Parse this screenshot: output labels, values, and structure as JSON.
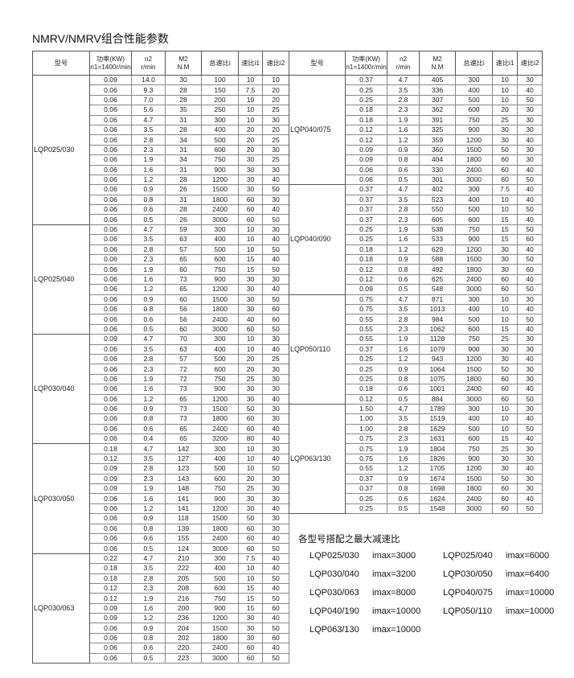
{
  "title": "NMRV/NMRV组合性能参数",
  "headers": [
    {
      "l1": "型号",
      "l2": ""
    },
    {
      "l1": "功率(KW)",
      "l2": "n1=1400r/min"
    },
    {
      "l1": "n2",
      "l2": "r/min"
    },
    {
      "l1": "M2",
      "l2": "N.M"
    },
    {
      "l1": "总速比i",
      "l2": ""
    },
    {
      "l1": "速比i1",
      "l2": ""
    },
    {
      "l1": "速比i2",
      "l2": ""
    }
  ],
  "left_table": [
    {
      "model": "LQP025/030",
      "rows": [
        [
          "0.09",
          "14.0",
          "30",
          "100",
          "10",
          "10"
        ],
        [
          "0.06",
          "9.3",
          "28",
          "150",
          "7.5",
          "20"
        ],
        [
          "0.06",
          "7.0",
          "28",
          "200",
          "10",
          "20"
        ],
        [
          "0.06",
          "5.6",
          "35",
          "250",
          "10",
          "25"
        ],
        [
          "0.06",
          "4.7",
          "31",
          "300",
          "10",
          "30"
        ],
        [
          "0.06",
          "3.5",
          "28",
          "400",
          "20",
          "20"
        ],
        [
          "0.06",
          "2.8",
          "34",
          "500",
          "20",
          "25"
        ],
        [
          "0.06",
          "2.3",
          "31",
          "600",
          "20",
          "30"
        ],
        [
          "0.06",
          "1.9",
          "34",
          "750",
          "30",
          "25"
        ],
        [
          "0.06",
          "1.6",
          "31",
          "900",
          "30",
          "30"
        ],
        [
          "0.06",
          "1.2",
          "28",
          "1200",
          "30",
          "40"
        ],
        [
          "0.06",
          "0.9",
          "26",
          "1500",
          "30",
          "50"
        ],
        [
          "0.06",
          "0.8",
          "31",
          "1800",
          "60",
          "30"
        ],
        [
          "0.06",
          "0.6",
          "28",
          "2400",
          "60",
          "40"
        ],
        [
          "0.06",
          "0.5",
          "26",
          "3000",
          "60",
          "50"
        ]
      ]
    },
    {
      "model": "LQP025/040",
      "rows": [
        [
          "0.06",
          "4.7",
          "59",
          "300",
          "10",
          "30"
        ],
        [
          "0.06",
          "3.5",
          "63",
          "400",
          "10",
          "40"
        ],
        [
          "0.06",
          "2.8",
          "57",
          "500",
          "10",
          "50"
        ],
        [
          "0.06",
          "2.3",
          "65",
          "600",
          "15",
          "40"
        ],
        [
          "0.06",
          "1.9",
          "60",
          "750",
          "15",
          "50"
        ],
        [
          "0.06",
          "1.6",
          "73",
          "900",
          "30",
          "30"
        ],
        [
          "0.06",
          "1.2",
          "65",
          "1200",
          "30",
          "40"
        ],
        [
          "0.06",
          "0.9",
          "60",
          "1500",
          "30",
          "50"
        ],
        [
          "0.06",
          "0.8",
          "56",
          "1800",
          "30",
          "60"
        ],
        [
          "0.06",
          "0.6",
          "56",
          "2400",
          "40",
          "60"
        ],
        [
          "0.06",
          "0.5",
          "60",
          "3000",
          "60",
          "50"
        ]
      ]
    },
    {
      "model": "LQP030/040",
      "rows": [
        [
          "0.09",
          "4.7",
          "70",
          "300",
          "10",
          "30"
        ],
        [
          "0.06",
          "3.5",
          "63",
          "400",
          "10",
          "40"
        ],
        [
          "0.06",
          "2.8",
          "57",
          "500",
          "20",
          "25"
        ],
        [
          "0.06",
          "2.3",
          "72",
          "600",
          "20",
          "30"
        ],
        [
          "0.06",
          "1.9",
          "72",
          "750",
          "25",
          "30"
        ],
        [
          "0.06",
          "1.6",
          "73",
          "900",
          "30",
          "30"
        ],
        [
          "0.06",
          "1.2",
          "65",
          "1200",
          "30",
          "40"
        ],
        [
          "0.06",
          "0.9",
          "73",
          "1500",
          "50",
          "30"
        ],
        [
          "0.06",
          "0.8",
          "73",
          "1800",
          "60",
          "30"
        ],
        [
          "0.06",
          "0.6",
          "65",
          "2400",
          "60",
          "40"
        ],
        [
          "0.06",
          "0.4",
          "65",
          "3200",
          "80",
          "40"
        ]
      ]
    },
    {
      "model": "LQP030/050",
      "rows": [
        [
          "0.18",
          "4.7",
          "142",
          "300",
          "10",
          "30"
        ],
        [
          "0.12",
          "3.5",
          "127",
          "400",
          "10",
          "40"
        ],
        [
          "0.09",
          "2.8",
          "123",
          "500",
          "10",
          "50"
        ],
        [
          "0.09",
          "2.3",
          "143",
          "600",
          "20",
          "30"
        ],
        [
          "0.09",
          "1.9",
          "148",
          "750",
          "25",
          "30"
        ],
        [
          "0.06",
          "1.6",
          "141",
          "900",
          "30",
          "30"
        ],
        [
          "0.06",
          "1.2",
          "141",
          "1200",
          "30",
          "40"
        ],
        [
          "0.06",
          "0.9",
          "118",
          "1500",
          "50",
          "30"
        ],
        [
          "0.06",
          "0.8",
          "139",
          "1800",
          "60",
          "30"
        ],
        [
          "0.06",
          "0.6",
          "155",
          "2400",
          "60",
          "40"
        ],
        [
          "0.06",
          "0.5",
          "124",
          "3000",
          "60",
          "50"
        ]
      ]
    },
    {
      "model": "LQP030/063",
      "rows": [
        [
          "0.22",
          "4.7",
          "210",
          "300",
          "7.5",
          "40"
        ],
        [
          "0.18",
          "3.5",
          "222",
          "400",
          "10",
          "40"
        ],
        [
          "0.18",
          "2.8",
          "205",
          "500",
          "10",
          "50"
        ],
        [
          "0.12",
          "2.3",
          "208",
          "600",
          "15",
          "40"
        ],
        [
          "0.12",
          "1.9",
          "216",
          "750",
          "15",
          "50"
        ],
        [
          "0.09",
          "1.6",
          "200",
          "900",
          "15",
          "60"
        ],
        [
          "0.09",
          "1.2",
          "236",
          "1200",
          "30",
          "40"
        ],
        [
          "0.06",
          "0.9",
          "204",
          "1500",
          "30",
          "50"
        ],
        [
          "0.06",
          "0.8",
          "202",
          "1800",
          "30",
          "60"
        ],
        [
          "0.06",
          "0.6",
          "220",
          "2400",
          "60",
          "40"
        ],
        [
          "0.06",
          "0.5",
          "223",
          "3000",
          "60",
          "50"
        ]
      ]
    }
  ],
  "right_table": [
    {
      "model": "LQP040/075",
      "rows": [
        [
          "0.37",
          "4.7",
          "405",
          "300",
          "10",
          "30"
        ],
        [
          "0.25",
          "3.5",
          "336",
          "400",
          "10",
          "40"
        ],
        [
          "0.25",
          "2.8",
          "307",
          "500",
          "10",
          "50"
        ],
        [
          "0.18",
          "2.3",
          "362",
          "600",
          "20",
          "30"
        ],
        [
          "0.18",
          "1.9",
          "391",
          "750",
          "25",
          "30"
        ],
        [
          "0.12",
          "1.6",
          "325",
          "900",
          "30",
          "30"
        ],
        [
          "0.12",
          "1.2",
          "359",
          "1200",
          "30",
          "40"
        ],
        [
          "0.09",
          "0.9",
          "360",
          "1500",
          "50",
          "30"
        ],
        [
          "0.09",
          "0.8",
          "404",
          "1800",
          "60",
          "30"
        ],
        [
          "0.06",
          "0.6",
          "330",
          "2400",
          "60",
          "40"
        ],
        [
          "0.06",
          "0.5",
          "301",
          "3000",
          "60",
          "50"
        ]
      ]
    },
    {
      "model": "LQP040/090",
      "rows": [
        [
          "0.37",
          "4.7",
          "402",
          "300",
          "7.5",
          "40"
        ],
        [
          "0.37",
          "3.5",
          "523",
          "400",
          "10",
          "40"
        ],
        [
          "0.37",
          "2.8",
          "550",
          "500",
          "10",
          "50"
        ],
        [
          "0.37",
          "2.3",
          "605",
          "600",
          "15",
          "40"
        ],
        [
          "0.25",
          "1.9",
          "538",
          "750",
          "15",
          "50"
        ],
        [
          "0.25",
          "1.6",
          "533",
          "900",
          "15",
          "60"
        ],
        [
          "0.18",
          "1.2",
          "629",
          "1200",
          "30",
          "40"
        ],
        [
          "0.18",
          "0.9",
          "588",
          "1500",
          "30",
          "50"
        ],
        [
          "0.12",
          "0.8",
          "492",
          "1800",
          "30",
          "60"
        ],
        [
          "0.12",
          "0.6",
          "625",
          "2400",
          "60",
          "40"
        ],
        [
          "0.09",
          "0.5",
          "548",
          "3000",
          "60",
          "50"
        ]
      ]
    },
    {
      "model": "LQP050/110",
      "rows": [
        [
          "0.75",
          "4.7",
          "871",
          "300",
          "10",
          "30"
        ],
        [
          "0.75",
          "3.5",
          "1013",
          "400",
          "10",
          "40"
        ],
        [
          "0.55",
          "2.8",
          "984",
          "500",
          "10",
          "50"
        ],
        [
          "0.55",
          "2.3",
          "1062",
          "600",
          "15",
          "40"
        ],
        [
          "0.55",
          "1.9",
          "1128",
          "750",
          "25",
          "30"
        ],
        [
          "0.37",
          "1.6",
          "1079",
          "900",
          "30",
          "30"
        ],
        [
          "0.25",
          "1.2",
          "943",
          "1200",
          "30",
          "40"
        ],
        [
          "0.25",
          "0.9",
          "1064",
          "1500",
          "50",
          "30"
        ],
        [
          "0.25",
          "0.8",
          "1075",
          "1800",
          "60",
          "30"
        ],
        [
          "0.18",
          "0.6",
          "1001",
          "2400",
          "60",
          "40"
        ],
        [
          "0.12",
          "0.5",
          "884",
          "3000",
          "60",
          "50"
        ]
      ]
    },
    {
      "model": "LQP063/130",
      "rows": [
        [
          "1.50",
          "4.7",
          "1789",
          "300",
          "10",
          "30"
        ],
        [
          "1.00",
          "3.5",
          "1519",
          "400",
          "10",
          "40"
        ],
        [
          "1.00",
          "2.8",
          "1629",
          "500",
          "10",
          "50"
        ],
        [
          "0.75",
          "2.3",
          "1631",
          "600",
          "15",
          "40"
        ],
        [
          "0.75",
          "1.9",
          "1804",
          "750",
          "25",
          "30"
        ],
        [
          "0.75",
          "1.6",
          "1826",
          "900",
          "30",
          "30"
        ],
        [
          "0.55",
          "1.2",
          "1705",
          "1200",
          "30",
          "40"
        ],
        [
          "0.37",
          "0.9",
          "1674",
          "1500",
          "50",
          "30"
        ],
        [
          "0.37",
          "0.8",
          "1698",
          "1800",
          "60",
          "30"
        ],
        [
          "0.25",
          "0.6",
          "1624",
          "2400",
          "60",
          "40"
        ],
        [
          "0.25",
          "0.5",
          "1548",
          "3000",
          "60",
          "50"
        ]
      ]
    }
  ],
  "max_ratio": {
    "heading": "各型号搭配之最大减速比",
    "items": [
      {
        "model": "LQP025/030",
        "imax": "imax=3000"
      },
      {
        "model": "LQP025/040",
        "imax": "imax=6000"
      },
      {
        "model": "LQP030/040",
        "imax": "imax=3200"
      },
      {
        "model": "LQP030/050",
        "imax": "imax=6400"
      },
      {
        "model": "LQP030/063",
        "imax": "imax=8000"
      },
      {
        "model": "LQP040/075",
        "imax": "imax=10000"
      },
      {
        "model": "LQP040/190",
        "imax": "imax=10000"
      },
      {
        "model": "LQP050/110",
        "imax": "imax=10000"
      },
      {
        "model": "LQP063/130",
        "imax": "imax=10000"
      }
    ]
  }
}
